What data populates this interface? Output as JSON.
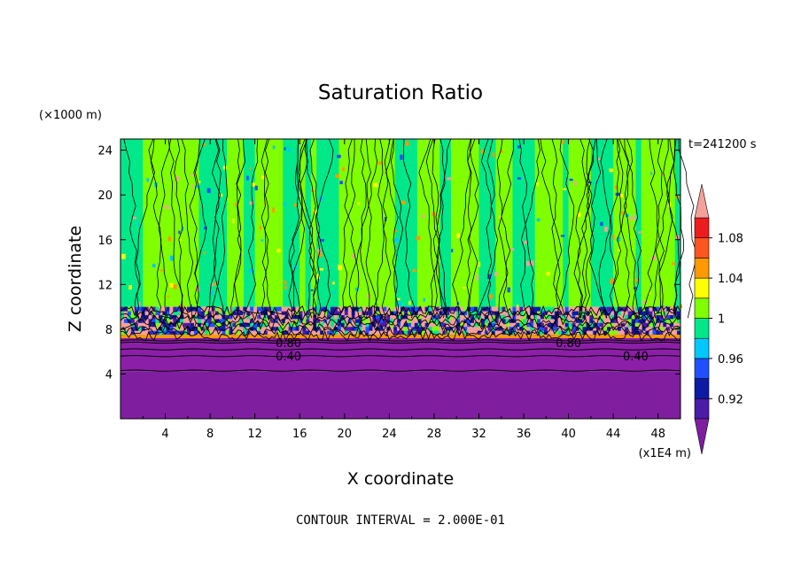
{
  "chart_data": {
    "type": "heatmap",
    "title": "Saturation Ratio",
    "xlabel": "X coordinate",
    "ylabel": "Z coordinate",
    "x_unit": "(x1E4 m)",
    "y_unit": "(×1000 m)",
    "time_label": "t=241200 s",
    "footer": "CONTOUR INTERVAL = 2.000E-01",
    "xlim": [
      0,
      50
    ],
    "ylim": [
      0,
      25
    ],
    "x_ticks": [
      4,
      8,
      12,
      16,
      20,
      24,
      28,
      32,
      36,
      40,
      44,
      48
    ],
    "y_ticks": [
      4,
      8,
      12,
      16,
      20,
      24
    ],
    "contour_line_labels": [
      {
        "text": "0.40",
        "x": 15,
        "z": 5.6
      },
      {
        "text": "0.40",
        "x": 46,
        "z": 5.6
      },
      {
        "text": "0.80",
        "x": 15,
        "z": 6.8
      },
      {
        "text": "0.80",
        "x": 40,
        "z": 6.8
      }
    ],
    "regions": [
      {
        "z_range": [
          0,
          4.2
        ],
        "value_below": 0.9,
        "color": "#7f1fa0"
      },
      {
        "z_range": [
          4.2,
          7.2
        ],
        "value_below": 0.9,
        "color": "#8c1fa8",
        "note_lines": [
          0.4,
          0.8
        ]
      },
      {
        "z_range": [
          7.2,
          10
        ],
        "mixed_levels": [
          0.92,
          1.1
        ],
        "colors": [
          "#f4a19a",
          "#3a1aa0",
          "#1f50ff",
          "#ff9900"
        ]
      },
      {
        "z_range": [
          10,
          25
        ],
        "alternating_levels": [
          0.98,
          1.0
        ],
        "colors": [
          "#00e88a",
          "#80ff00"
        ]
      }
    ],
    "colorbar": {
      "tick_labels": [
        "0.92",
        "0.96",
        "1",
        "1.04",
        "1.08"
      ],
      "levels": [
        0.9,
        0.92,
        0.94,
        0.96,
        0.98,
        1.0,
        1.02,
        1.04,
        1.06,
        1.08,
        1.1
      ],
      "colors": [
        "#7f1fa0",
        "#4b1ca8",
        "#0d1aa6",
        "#1f50ff",
        "#00c8ff",
        "#00e88a",
        "#80ff00",
        "#ffff00",
        "#ff9900",
        "#ff5520",
        "#ee1c1c",
        "#f4a19a"
      ],
      "extend": "both"
    }
  }
}
